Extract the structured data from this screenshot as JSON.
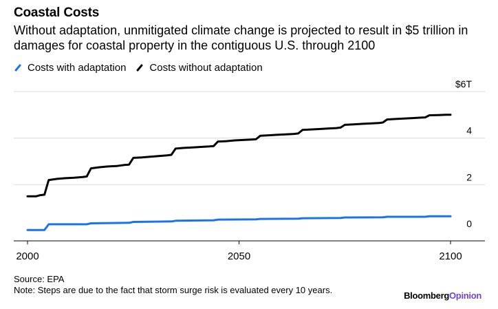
{
  "header": {
    "title": "Coastal Costs",
    "subtitle": "Without adaptation, unmitigated climate change is projected to result in $5 trillion in damages for coastal property in the contiguous U.S. through 2100"
  },
  "footer": {
    "source": "Source: EPA",
    "note": "Note: Steps are due to the fact that storm surge risk is evaluated every 10 years.",
    "brand_main": "Bloomberg",
    "brand_accent": "Opinion"
  },
  "colors": {
    "adaptation": "#1a73e8",
    "without": "#000000",
    "brand_accent": "#6d43d8"
  },
  "chart_data": {
    "type": "line",
    "xlim": [
      2000,
      2100
    ],
    "ylim": [
      0,
      6
    ],
    "x_ticks": [
      2000,
      2050,
      2100
    ],
    "x_tick_labels": [
      "2000",
      "2050",
      "2100"
    ],
    "y_ticks": [
      0,
      2,
      4,
      6
    ],
    "y_tick_labels": [
      "0",
      "2",
      "4",
      "$6T"
    ],
    "legend_position": "top-left",
    "series": [
      {
        "name": "Costs with adaptation",
        "color": "#1a73e8",
        "points": [
          [
            2000,
            0.05
          ],
          [
            2004,
            0.05
          ],
          [
            2005,
            0.3
          ],
          [
            2014,
            0.3
          ],
          [
            2015,
            0.34
          ],
          [
            2024,
            0.36
          ],
          [
            2025,
            0.4
          ],
          [
            2034,
            0.42
          ],
          [
            2035,
            0.45
          ],
          [
            2044,
            0.47
          ],
          [
            2045,
            0.5
          ],
          [
            2054,
            0.51
          ],
          [
            2055,
            0.53
          ],
          [
            2064,
            0.54
          ],
          [
            2065,
            0.56
          ],
          [
            2074,
            0.57
          ],
          [
            2075,
            0.59
          ],
          [
            2084,
            0.6
          ],
          [
            2085,
            0.62
          ],
          [
            2094,
            0.62
          ],
          [
            2095,
            0.64
          ],
          [
            2100,
            0.64
          ]
        ]
      },
      {
        "name": "Costs without adaptation",
        "color": "#000000",
        "points": [
          [
            2000,
            1.5
          ],
          [
            2002,
            1.5
          ],
          [
            2003,
            1.55
          ],
          [
            2004,
            1.57
          ],
          [
            2005,
            2.2
          ],
          [
            2007,
            2.25
          ],
          [
            2009,
            2.28
          ],
          [
            2011,
            2.3
          ],
          [
            2013,
            2.33
          ],
          [
            2014,
            2.35
          ],
          [
            2015,
            2.7
          ],
          [
            2017,
            2.75
          ],
          [
            2019,
            2.78
          ],
          [
            2021,
            2.8
          ],
          [
            2023,
            2.85
          ],
          [
            2024,
            2.86
          ],
          [
            2025,
            3.15
          ],
          [
            2027,
            3.17
          ],
          [
            2029,
            3.2
          ],
          [
            2031,
            3.23
          ],
          [
            2033,
            3.26
          ],
          [
            2034,
            3.28
          ],
          [
            2035,
            3.55
          ],
          [
            2037,
            3.58
          ],
          [
            2039,
            3.6
          ],
          [
            2041,
            3.62
          ],
          [
            2043,
            3.64
          ],
          [
            2044,
            3.66
          ],
          [
            2045,
            3.85
          ],
          [
            2047,
            3.87
          ],
          [
            2049,
            3.9
          ],
          [
            2051,
            3.92
          ],
          [
            2053,
            3.94
          ],
          [
            2054,
            3.95
          ],
          [
            2055,
            4.1
          ],
          [
            2057,
            4.12
          ],
          [
            2059,
            4.14
          ],
          [
            2061,
            4.16
          ],
          [
            2063,
            4.18
          ],
          [
            2064,
            4.2
          ],
          [
            2065,
            4.35
          ],
          [
            2067,
            4.37
          ],
          [
            2069,
            4.39
          ],
          [
            2071,
            4.41
          ],
          [
            2073,
            4.43
          ],
          [
            2074,
            4.45
          ],
          [
            2075,
            4.57
          ],
          [
            2077,
            4.59
          ],
          [
            2079,
            4.61
          ],
          [
            2081,
            4.63
          ],
          [
            2083,
            4.65
          ],
          [
            2084,
            4.67
          ],
          [
            2085,
            4.8
          ],
          [
            2087,
            4.82
          ],
          [
            2089,
            4.84
          ],
          [
            2091,
            4.86
          ],
          [
            2093,
            4.88
          ],
          [
            2094,
            4.89
          ],
          [
            2095,
            4.98
          ],
          [
            2097,
            4.99
          ],
          [
            2099,
            5.0
          ],
          [
            2100,
            5.0
          ]
        ]
      }
    ]
  }
}
